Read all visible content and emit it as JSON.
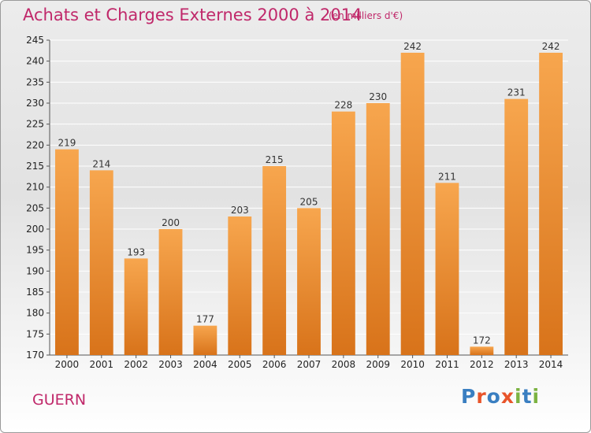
{
  "header": {
    "title": "Achats et Charges Externes 2000 à 2014",
    "subtitle": "(en milliers d'€)"
  },
  "footer": {
    "commune": "GUERN",
    "logo": "Proxiti"
  },
  "colors": {
    "accent": "#c0286a",
    "bar_light": "#f7a64e",
    "bar_dark": "#d8731a",
    "logo_letters": [
      "#3a7fc1",
      "#e8542a",
      "#3a7fc1",
      "#e8542a",
      "#7cb342",
      "#3a7fc1",
      "#7cb342"
    ]
  },
  "chart_data": {
    "type": "bar",
    "title": "Achats et Charges Externes 2000 à 2014",
    "subtitle": "(en milliers d'€)",
    "categories": [
      "2000",
      "2001",
      "2002",
      "2003",
      "2004",
      "2005",
      "2006",
      "2007",
      "2008",
      "2009",
      "2010",
      "2011",
      "2012",
      "2013",
      "2014"
    ],
    "values": [
      219,
      214,
      193,
      200,
      177,
      203,
      215,
      205,
      228,
      230,
      242,
      211,
      172,
      231,
      242
    ],
    "ylim": [
      170,
      245
    ],
    "yticks": [
      170,
      175,
      180,
      185,
      190,
      195,
      200,
      205,
      210,
      215,
      220,
      225,
      230,
      235,
      240,
      245
    ],
    "grid": true,
    "data_labels": true
  }
}
